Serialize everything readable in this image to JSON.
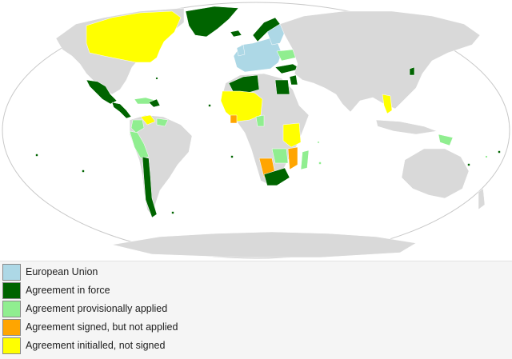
{
  "map": {
    "projection": "robinson",
    "base_land_color": "#d9d9d9",
    "ocean_color": "#ffffff"
  },
  "legend": [
    {
      "label": "European Union",
      "color": "#add8e6",
      "key": "eu"
    },
    {
      "label": "Agreement in force",
      "color": "#006400",
      "key": "in_force"
    },
    {
      "label": "Agreement provisionally applied",
      "color": "#90ee90",
      "key": "provisional"
    },
    {
      "label": "Agreement signed, but not applied",
      "color": "#ffa500",
      "key": "signed"
    },
    {
      "label": "Agreement initialled, not signed",
      "color": "#ffff00",
      "key": "initialled"
    }
  ],
  "regions": {
    "eu": [
      "EU member states"
    ],
    "in_force": [
      "Mexico",
      "Chile",
      "Peru",
      "Colombia",
      "Central America",
      "Greenland",
      "Iceland",
      "Norway",
      "Switzerland",
      "Algeria",
      "Tunisia",
      "Morocco",
      "Egypt",
      "Israel",
      "Jordan",
      "Lebanon",
      "Turkey",
      "South Africa",
      "Botswana",
      "Lesotho",
      "Eswatini",
      "South Korea"
    ],
    "provisional": [
      "Ecuador",
      "Ukraine",
      "Georgia",
      "Moldova",
      "Cameroon",
      "Mozambique",
      "Zimbabwe",
      "Madagascar",
      "Papua New Guinea",
      "Caribbean states"
    ],
    "signed": [
      "Namibia",
      "Ghana",
      "Malawi"
    ],
    "initialled": [
      "Canada",
      "Vietnam",
      "West Africa",
      "Tanzania",
      "Kenya",
      "Venezuela"
    ]
  }
}
